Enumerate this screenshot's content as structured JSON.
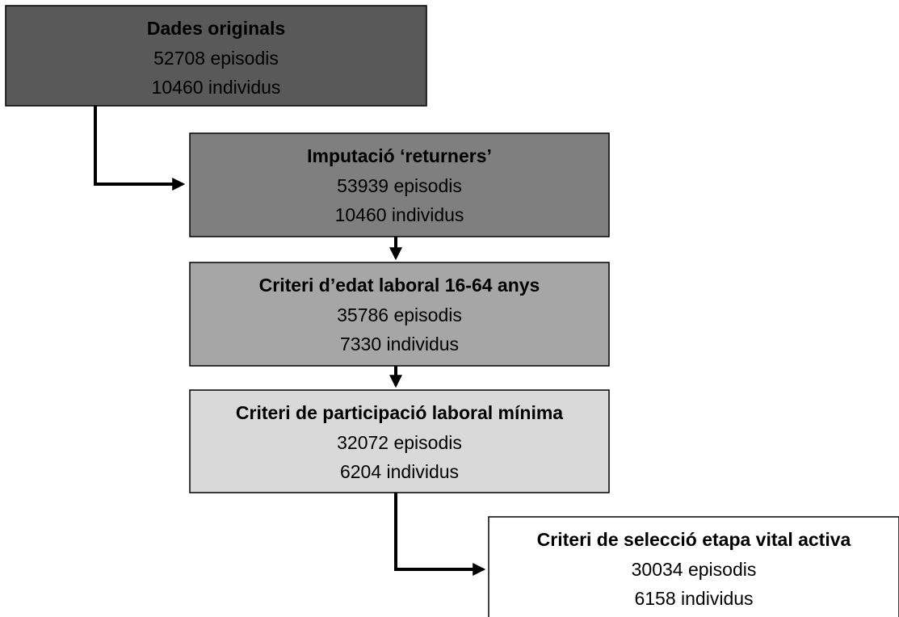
{
  "nodes": [
    {
      "title": "Dades originals",
      "lines": [
        "52708 episodis",
        "10460 individus"
      ]
    },
    {
      "title": "Imputació ‘returners’",
      "lines": [
        "53939 episodis",
        "10460 individus"
      ]
    },
    {
      "title": "Criteri d’edat laboral 16-64 anys",
      "lines": [
        "35786 episodis",
        "7330 individus"
      ]
    },
    {
      "title": "Criteri de participació laboral mínima",
      "lines": [
        "32072 episodis",
        "6204 individus"
      ]
    },
    {
      "title": "Criteri de selecció etapa vital activa",
      "lines": [
        "30034 episodis",
        "6158 individus"
      ]
    }
  ]
}
